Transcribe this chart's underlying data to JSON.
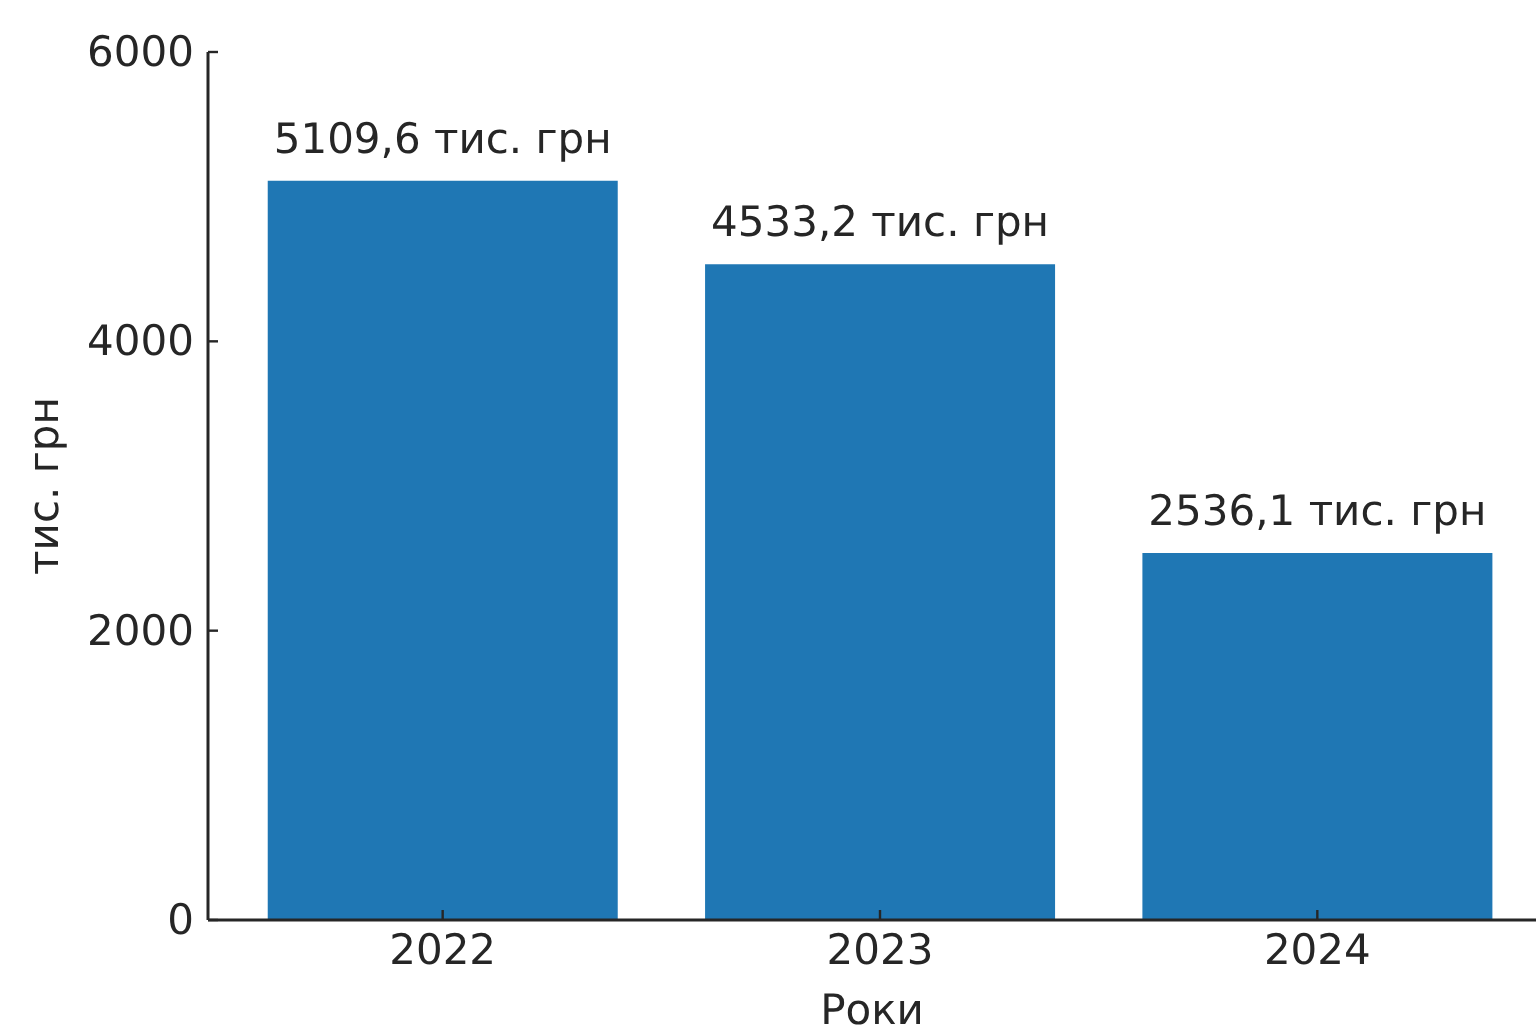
{
  "chart_data": {
    "type": "bar",
    "xlabel": "Роки",
    "ylabel": "тис. грн",
    "categories": [
      "2022",
      "2023",
      "2024"
    ],
    "values": [
      5109.6,
      4533.2,
      2536.1
    ],
    "value_labels": [
      "5109,6 тис. грн",
      "4533,2 тис. грн",
      "2536,1 тис. грн"
    ],
    "color": "#1f77b4",
    "ylim": [
      0,
      6000
    ],
    "yticks": [
      0,
      2000,
      4000,
      6000
    ]
  }
}
